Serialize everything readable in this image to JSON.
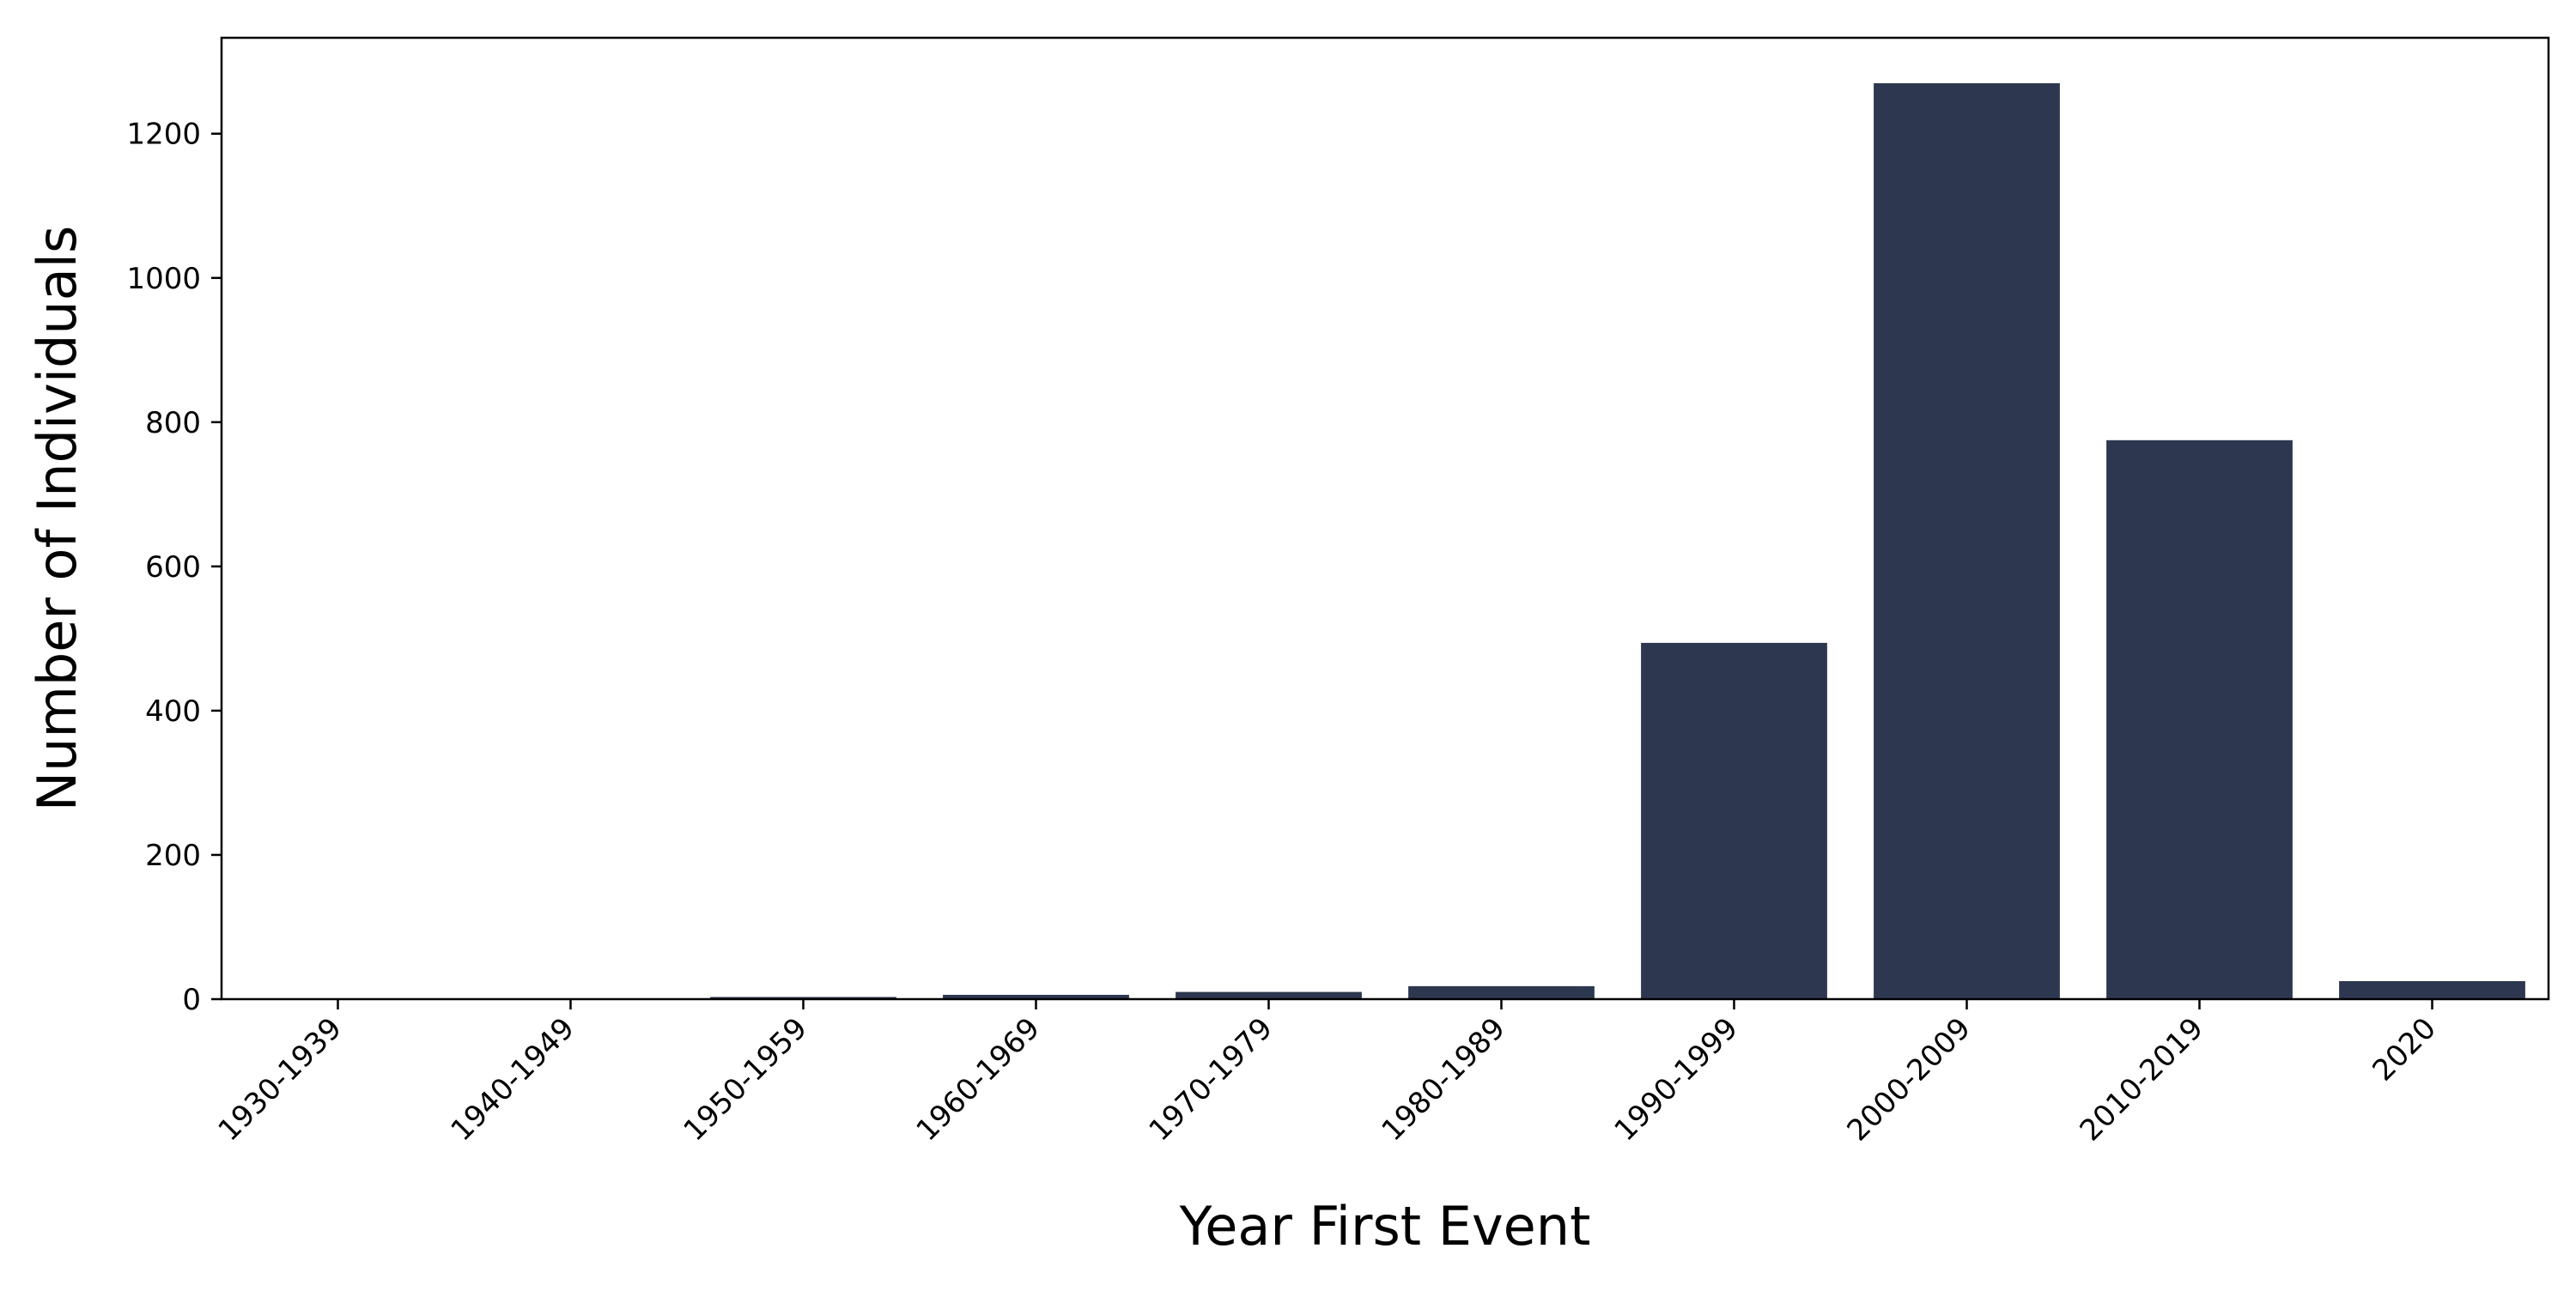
{
  "chart_data": {
    "type": "bar",
    "xlabel": "Year First Event",
    "ylabel": "Number of Individuals",
    "categories": [
      "1930-1939",
      "1940-1949",
      "1950-1959",
      "1960-1969",
      "1970-1979",
      "1980-1989",
      "1990-1999",
      "2000-2009",
      "2010-2019",
      "2020"
    ],
    "values": [
      1,
      1,
      3,
      6,
      10,
      18,
      494,
      1270,
      775,
      25
    ],
    "ylim": [
      0,
      1333
    ],
    "yticks": [
      0,
      200,
      400,
      600,
      800,
      1000,
      1200
    ],
    "grid": false,
    "bar_color": "#2d3850",
    "x_tick_rotation": -45
  }
}
